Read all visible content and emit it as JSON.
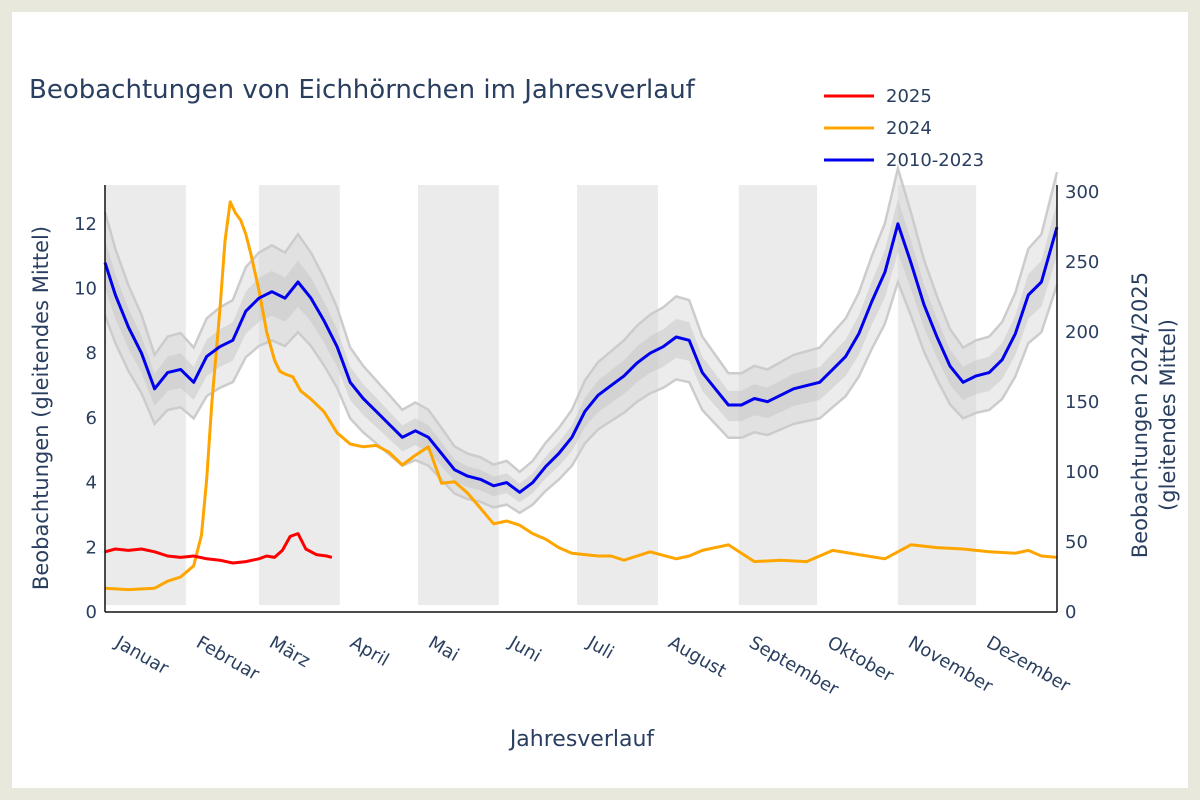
{
  "chart_data": {
    "type": "line",
    "title": "Beobachtungen von Eichhörnchen im Jahresverlauf",
    "xlabel": "Jahresverlauf",
    "ylabel_left": "Beobachtungen (gleitendes Mittel)",
    "ylabel_right_line1": "Beobachtungen 2024/2025",
    "ylabel_right_line2": "(gleitendes Mittel)",
    "x_range_days": [
      1,
      366
    ],
    "y_left_range": [
      0,
      13.2
    ],
    "y_right_range": [
      0,
      305
    ],
    "y_left_ticks": [
      0,
      2,
      4,
      6,
      8,
      10,
      12
    ],
    "y_right_ticks": [
      0,
      50,
      100,
      150,
      200,
      250,
      300
    ],
    "months": [
      "Januar",
      "Februar",
      "März",
      "April",
      "Mai",
      "Juni",
      "Juli",
      "August",
      "September",
      "Oktober",
      "November",
      "Dezember"
    ],
    "shaded_months": [
      "Januar",
      "März",
      "Mai",
      "Juli",
      "September",
      "November"
    ],
    "legend_position": "top-right",
    "colors": {
      "s2025": "#ff0000",
      "s2024": "#ffa500",
      "hist": "#0000ee",
      "band": "#d4d4d4",
      "shade": "#ebebeb"
    },
    "series": [
      {
        "name": "2025",
        "axis": "right",
        "x": [
          1,
          5,
          10,
          15,
          20,
          25,
          30,
          35,
          40,
          45,
          50,
          55,
          60,
          63,
          66,
          69,
          72,
          75,
          78,
          82,
          86,
          88
        ],
        "values": [
          43,
          45,
          44,
          45,
          43,
          40,
          39,
          40,
          38,
          37,
          35,
          36,
          38,
          40,
          39,
          44,
          54,
          56,
          45,
          41,
          40,
          39
        ]
      },
      {
        "name": "2024",
        "axis": "right",
        "x": [
          1,
          10,
          20,
          25,
          30,
          35,
          38,
          40,
          42,
          45,
          47,
          49,
          51,
          53,
          55,
          57,
          60,
          63,
          66,
          68,
          70,
          73,
          76,
          80,
          85,
          90,
          95,
          100,
          105,
          110,
          115,
          120,
          125,
          130,
          135,
          140,
          145,
          150,
          155,
          160,
          165,
          170,
          175,
          180,
          185,
          190,
          195,
          200,
          210,
          220,
          225,
          230,
          240,
          250,
          260,
          270,
          280,
          290,
          300,
          310,
          320,
          330,
          340,
          350,
          355,
          360,
          366
        ],
        "values": [
          17,
          16,
          17,
          22,
          25,
          33,
          55,
          95,
          150,
          215,
          265,
          293,
          285,
          280,
          270,
          255,
          230,
          200,
          180,
          172,
          170,
          168,
          158,
          152,
          143,
          128,
          120,
          118,
          119,
          114,
          105,
          112,
          118,
          92,
          93,
          85,
          74,
          63,
          65,
          62,
          56,
          52,
          46,
          42,
          41,
          40,
          40,
          37,
          43,
          38,
          40,
          44,
          48,
          36,
          37,
          36,
          44,
          41,
          38,
          48,
          46,
          45,
          43,
          42,
          44,
          40,
          39
        ]
      },
      {
        "name": "2010-2023",
        "axis": "left",
        "x": [
          1,
          5,
          10,
          15,
          20,
          25,
          30,
          35,
          40,
          45,
          50,
          55,
          60,
          65,
          70,
          75,
          80,
          85,
          90,
          95,
          100,
          105,
          110,
          115,
          120,
          125,
          130,
          135,
          140,
          145,
          150,
          155,
          160,
          165,
          170,
          175,
          180,
          185,
          190,
          195,
          200,
          205,
          210,
          215,
          220,
          225,
          230,
          235,
          240,
          245,
          250,
          255,
          260,
          265,
          270,
          275,
          280,
          285,
          290,
          295,
          300,
          305,
          310,
          315,
          320,
          325,
          330,
          335,
          340,
          345,
          350,
          355,
          360,
          366
        ],
        "values": [
          10.8,
          9.8,
          8.8,
          8.0,
          6.9,
          7.4,
          7.5,
          7.1,
          7.9,
          8.2,
          8.4,
          9.3,
          9.7,
          9.9,
          9.7,
          10.2,
          9.7,
          9.0,
          8.2,
          7.1,
          6.6,
          6.2,
          5.8,
          5.4,
          5.6,
          5.4,
          4.9,
          4.4,
          4.2,
          4.1,
          3.9,
          4.0,
          3.7,
          4.0,
          4.5,
          4.9,
          5.4,
          6.2,
          6.7,
          7.0,
          7.3,
          7.7,
          8.0,
          8.2,
          8.5,
          8.4,
          7.4,
          6.9,
          6.4,
          6.4,
          6.6,
          6.5,
          6.7,
          6.9,
          7.0,
          7.1,
          7.5,
          7.9,
          8.6,
          9.6,
          10.5,
          12.0,
          10.8,
          9.5,
          8.5,
          7.6,
          7.1,
          7.3,
          7.4,
          7.8,
          8.6,
          9.8,
          10.2,
          11.9
        ]
      }
    ]
  }
}
